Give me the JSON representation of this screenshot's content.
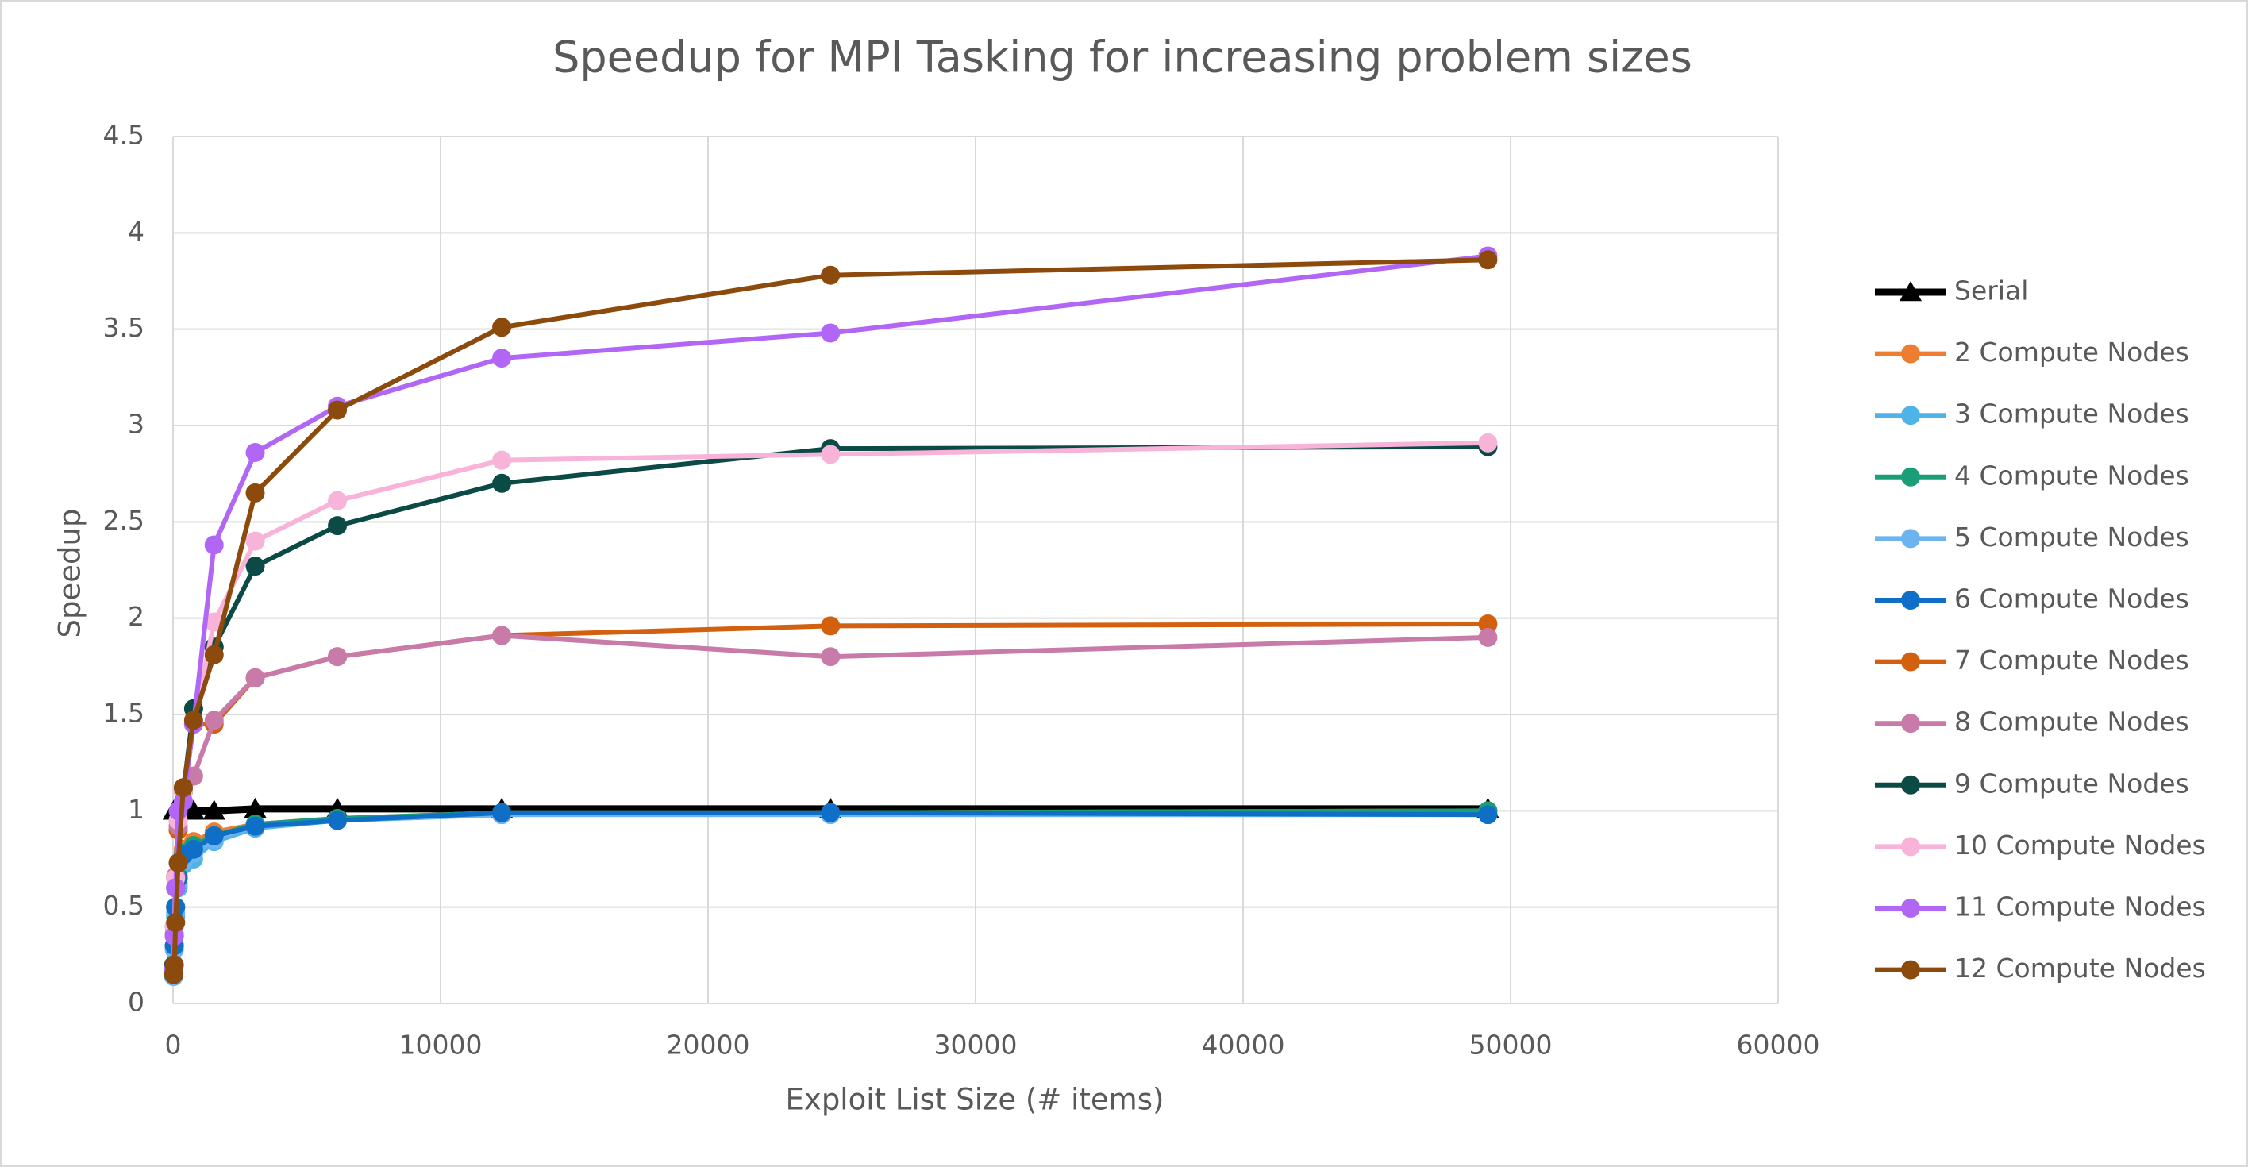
{
  "chart_data": {
    "type": "line",
    "title": "Speedup for MPI Tasking for increasing problem sizes",
    "x_label": "Exploit List Size (# items)",
    "y_label": "Speedup",
    "x": [
      24,
      48,
      96,
      192,
      384,
      768,
      1536,
      3072,
      6144,
      12288,
      24576,
      49152
    ],
    "xlim": [
      0,
      60000
    ],
    "xticks": [
      0,
      10000,
      20000,
      30000,
      40000,
      50000,
      60000
    ],
    "ylim": [
      0,
      4.5
    ],
    "yticks": [
      0,
      0.5,
      1,
      1.5,
      2,
      2.5,
      3,
      3.5,
      4,
      4.5
    ],
    "grid": true,
    "legend": "right",
    "series": [
      {
        "name": "Serial",
        "color": "#000000",
        "marker": "triangle",
        "values": [
          1,
          1,
          1,
          1,
          1,
          1,
          1,
          1.01,
          1.01,
          1.01,
          1.01,
          1.01
        ]
      },
      {
        "name": "2 Compute Nodes",
        "color": "#ed7d31",
        "values": [
          0.15,
          0.3,
          0.5,
          0.65,
          0.8,
          0.84,
          0.89,
          0.93,
          0.96,
          0.99,
          0.99,
          1.0
        ]
      },
      {
        "name": "3 Compute Nodes",
        "color": "#4fb3e8",
        "values": [
          0.14,
          0.28,
          0.45,
          0.6,
          0.72,
          0.75,
          0.84,
          0.91,
          0.95,
          0.98,
          0.98,
          0.98
        ]
      },
      {
        "name": "4 Compute Nodes",
        "color": "#1a9e77",
        "values": [
          0.15,
          0.3,
          0.5,
          0.66,
          0.78,
          0.82,
          0.87,
          0.93,
          0.96,
          0.99,
          0.99,
          1.0
        ]
      },
      {
        "name": "5 Compute Nodes",
        "color": "#6cb4f0",
        "values": [
          0.14,
          0.28,
          0.47,
          0.62,
          0.74,
          0.78,
          0.85,
          0.92,
          0.95,
          0.98,
          0.98,
          0.98
        ]
      },
      {
        "name": "6 Compute Nodes",
        "color": "#0f6fc6",
        "values": [
          0.15,
          0.3,
          0.5,
          0.65,
          0.77,
          0.8,
          0.87,
          0.92,
          0.95,
          0.99,
          0.99,
          0.98
        ]
      },
      {
        "name": "7 Compute Nodes",
        "color": "#d2600f",
        "values": [
          0.17,
          0.35,
          0.65,
          0.9,
          1.1,
          1.45,
          1.45,
          1.69,
          1.8,
          1.91,
          1.96,
          1.97
        ]
      },
      {
        "name": "8 Compute Nodes",
        "color": "#c87aa8",
        "values": [
          0.17,
          0.36,
          0.66,
          0.92,
          1.12,
          1.18,
          1.47,
          1.69,
          1.8,
          1.91,
          1.8,
          1.9
        ]
      },
      {
        "name": "9 Compute Nodes",
        "color": "#0b4a45",
        "values": [
          0.2,
          0.4,
          0.6,
          0.95,
          1.1,
          1.53,
          1.85,
          2.27,
          2.48,
          2.7,
          2.88,
          2.89
        ]
      },
      {
        "name": "10 Compute Nodes",
        "color": "#f7b3d8",
        "values": [
          0.18,
          0.4,
          0.65,
          0.95,
          1.1,
          1.45,
          1.98,
          2.4,
          2.61,
          2.82,
          2.85,
          2.91
        ]
      },
      {
        "name": "11 Compute Nodes",
        "color": "#b266f5",
        "values": [
          0.18,
          0.35,
          0.6,
          1.0,
          1.05,
          1.45,
          2.38,
          2.86,
          3.1,
          3.35,
          3.48,
          3.88
        ]
      },
      {
        "name": "12 Compute Nodes",
        "color": "#8c4a0c",
        "values": [
          0.15,
          0.2,
          0.42,
          0.73,
          1.12,
          1.47,
          1.81,
          2.65,
          3.08,
          3.51,
          3.78,
          3.86
        ]
      }
    ]
  }
}
